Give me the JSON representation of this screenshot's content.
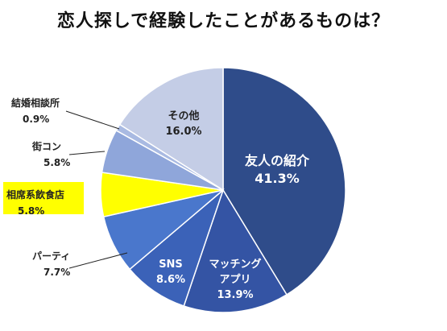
{
  "chart_data": {
    "type": "pie",
    "title": "恋人探しで経験したことがあるものは？",
    "slices": [
      {
        "name": "友人の紹介",
        "value": 41.3,
        "label": "41.3%",
        "color": "#2F4C8A"
      },
      {
        "name": "マッチングアプリ",
        "value": 13.9,
        "label": "13.9%",
        "color": "#3454A4"
      },
      {
        "name": "SNS",
        "value": 8.6,
        "label": "8.6%",
        "color": "#3B62B8"
      },
      {
        "name": "パーティ",
        "value": 7.7,
        "label": "7.7%",
        "color": "#4A77CC"
      },
      {
        "name": "相席系飲食店",
        "value": 5.8,
        "label": "5.8%",
        "color": "#FFFF00"
      },
      {
        "name": "街コン",
        "value": 5.8,
        "label": "5.8%",
        "color": "#8FA6DA"
      },
      {
        "name": "結婚相談所",
        "value": 0.9,
        "label": "0.9%",
        "color": "#A9BAE2"
      },
      {
        "name": "その他",
        "value": 16.0,
        "label": "16.0%",
        "color": "#C4CDE6"
      }
    ],
    "label_lines": {
      "inside_line_names": {
        "マッチングアプリ": [
          "マッチング",
          "アプリ"
        ]
      }
    },
    "highlight_label": "相席系飲食店",
    "highlight_color": "#FFFF00",
    "start": "12 o'clock",
    "direction": "clockwise"
  }
}
